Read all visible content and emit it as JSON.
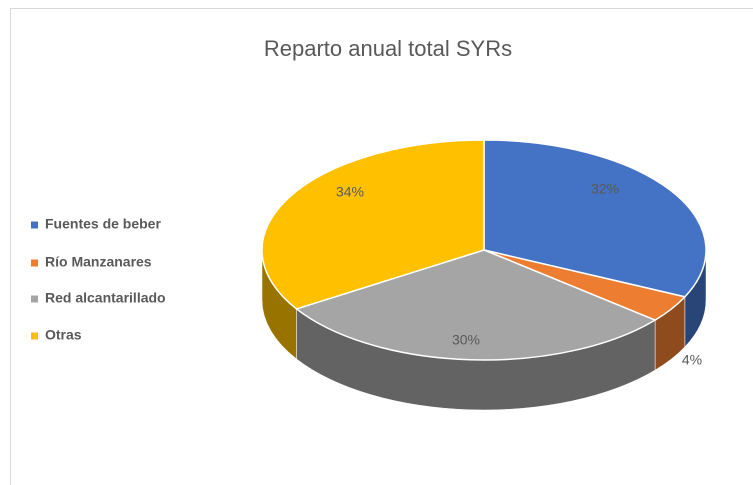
{
  "chart_data": {
    "type": "pie3d",
    "title": "Reparto anual total SYRs",
    "categories": [
      "Fuentes de beber",
      "Río Manzanares",
      "Red alcantarillado",
      "Otras"
    ],
    "values": [
      32,
      4,
      30,
      34
    ],
    "value_labels": [
      "32%",
      "4%",
      "30%",
      "34%"
    ],
    "colors": [
      "#4472c4",
      "#ed7d31",
      "#a5a5a5",
      "#ffc000"
    ],
    "legend": "left"
  }
}
